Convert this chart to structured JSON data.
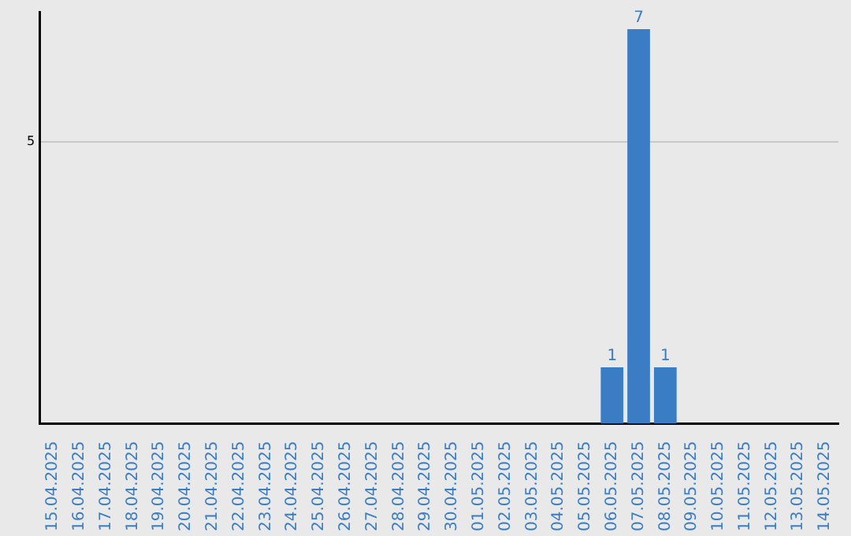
{
  "chart_data": {
    "type": "bar",
    "categories": [
      "15.04.2025",
      "16.04.2025",
      "17.04.2025",
      "18.04.2025",
      "19.04.2025",
      "20.04.2025",
      "21.04.2025",
      "22.04.2025",
      "23.04.2025",
      "24.04.2025",
      "25.04.2025",
      "26.04.2025",
      "27.04.2025",
      "28.04.2025",
      "29.04.2025",
      "30.04.2025",
      "01.05.2025",
      "02.05.2025",
      "03.05.2025",
      "04.05.2025",
      "05.05.2025",
      "06.05.2025",
      "07.05.2025",
      "08.05.2025",
      "09.05.2025",
      "10.05.2025",
      "11.05.2025",
      "12.05.2025",
      "13.05.2025",
      "14.05.2025"
    ],
    "values": [
      null,
      null,
      null,
      null,
      null,
      null,
      null,
      null,
      null,
      null,
      null,
      null,
      null,
      null,
      null,
      null,
      null,
      null,
      null,
      null,
      null,
      1,
      7,
      1,
      null,
      null,
      null,
      null,
      null,
      null
    ],
    "color": "#3a7dc4",
    "ylim": [
      0,
      7.3
    ],
    "yticks": [
      5
    ],
    "grid": "y",
    "data_labels": true
  }
}
